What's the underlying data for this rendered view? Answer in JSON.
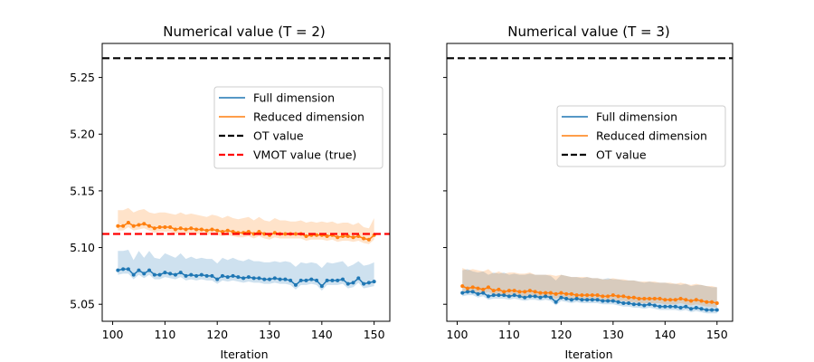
{
  "chart_data": [
    {
      "type": "line",
      "title": "Numerical value (T = 2)",
      "xlabel": "Iteration",
      "ylabel": "",
      "xlim": [
        98,
        153
      ],
      "ylim": [
        5.035,
        5.28
      ],
      "xticks": [
        100,
        110,
        120,
        130,
        140,
        150
      ],
      "yticks": [
        5.05,
        5.1,
        5.15,
        5.2,
        5.25
      ],
      "ytick_labels": [
        "5.05",
        "5.10",
        "5.15",
        "5.20",
        "5.25"
      ],
      "legend_position": "upper-right",
      "series": [
        {
          "name": "Full dimension",
          "color": "#1f77b4",
          "x_start": 101,
          "values": [
            5.08,
            5.081,
            5.081,
            5.076,
            5.08,
            5.077,
            5.08,
            5.076,
            5.076,
            5.078,
            5.077,
            5.076,
            5.078,
            5.075,
            5.076,
            5.075,
            5.076,
            5.075,
            5.075,
            5.072,
            5.075,
            5.074,
            5.075,
            5.074,
            5.073,
            5.074,
            5.073,
            5.073,
            5.072,
            5.072,
            5.073,
            5.072,
            5.072,
            5.071,
            5.067,
            5.071,
            5.071,
            5.072,
            5.071,
            5.066,
            5.071,
            5.071,
            5.071,
            5.072,
            5.068,
            5.069,
            5.073,
            5.068,
            5.069,
            5.07
          ],
          "upper": [
            5.097,
            5.097,
            5.098,
            5.089,
            5.097,
            5.091,
            5.097,
            5.091,
            5.09,
            5.095,
            5.093,
            5.091,
            5.095,
            5.09,
            5.092,
            5.09,
            5.091,
            5.09,
            5.09,
            5.086,
            5.091,
            5.089,
            5.091,
            5.089,
            5.088,
            5.09,
            5.088,
            5.088,
            5.087,
            5.087,
            5.088,
            5.087,
            5.088,
            5.087,
            5.083,
            5.087,
            5.086,
            5.087,
            5.086,
            5.082,
            5.087,
            5.086,
            5.087,
            5.088,
            5.083,
            5.085,
            5.088,
            5.084,
            5.085,
            5.087
          ],
          "lower": [
            5.076,
            5.077,
            5.077,
            5.072,
            5.076,
            5.073,
            5.076,
            5.072,
            5.072,
            5.074,
            5.073,
            5.072,
            5.074,
            5.071,
            5.072,
            5.071,
            5.072,
            5.071,
            5.071,
            5.068,
            5.071,
            5.07,
            5.071,
            5.07,
            5.069,
            5.07,
            5.069,
            5.069,
            5.068,
            5.068,
            5.069,
            5.068,
            5.068,
            5.067,
            5.063,
            5.067,
            5.067,
            5.068,
            5.067,
            5.062,
            5.067,
            5.067,
            5.067,
            5.068,
            5.064,
            5.065,
            5.069,
            5.064,
            5.065,
            5.066
          ]
        },
        {
          "name": "Reduced dimension",
          "color": "#ff7f0e",
          "x_start": 101,
          "values": [
            5.119,
            5.119,
            5.122,
            5.119,
            5.12,
            5.121,
            5.119,
            5.117,
            5.118,
            5.118,
            5.118,
            5.116,
            5.117,
            5.116,
            5.117,
            5.116,
            5.116,
            5.115,
            5.116,
            5.115,
            5.114,
            5.115,
            5.114,
            5.113,
            5.113,
            5.114,
            5.112,
            5.114,
            5.112,
            5.111,
            5.113,
            5.112,
            5.112,
            5.112,
            5.112,
            5.112,
            5.11,
            5.111,
            5.111,
            5.111,
            5.11,
            5.111,
            5.109,
            5.11,
            5.11,
            5.109,
            5.11,
            5.108,
            5.107,
            5.111
          ],
          "upper": [
            5.133,
            5.133,
            5.135,
            5.131,
            5.133,
            5.134,
            5.131,
            5.13,
            5.131,
            5.131,
            5.13,
            5.129,
            5.131,
            5.129,
            5.13,
            5.129,
            5.128,
            5.127,
            5.129,
            5.128,
            5.126,
            5.128,
            5.126,
            5.125,
            5.126,
            5.127,
            5.124,
            5.127,
            5.124,
            5.123,
            5.126,
            5.124,
            5.124,
            5.123,
            5.123,
            5.124,
            5.122,
            5.123,
            5.122,
            5.123,
            5.122,
            5.123,
            5.121,
            5.122,
            5.122,
            5.12,
            5.122,
            5.118,
            5.117,
            5.126
          ],
          "lower": [
            5.115,
            5.115,
            5.118,
            5.115,
            5.116,
            5.117,
            5.115,
            5.113,
            5.114,
            5.114,
            5.114,
            5.112,
            5.113,
            5.112,
            5.113,
            5.112,
            5.112,
            5.111,
            5.112,
            5.111,
            5.11,
            5.111,
            5.11,
            5.109,
            5.109,
            5.11,
            5.108,
            5.11,
            5.108,
            5.107,
            5.109,
            5.108,
            5.108,
            5.108,
            5.108,
            5.108,
            5.106,
            5.107,
            5.107,
            5.107,
            5.106,
            5.107,
            5.105,
            5.106,
            5.106,
            5.105,
            5.106,
            5.104,
            5.103,
            5.107
          ]
        }
      ],
      "hlines": [
        {
          "name": "OT value",
          "value": 5.267,
          "color": "#000000"
        },
        {
          "name": "VMOT value (true)",
          "value": 5.112,
          "color": "#ff0000"
        }
      ]
    },
    {
      "type": "line",
      "title": "Numerical value (T = 3)",
      "xlabel": "Iteration",
      "ylabel": "",
      "xlim": [
        98,
        153
      ],
      "ylim": [
        5.035,
        5.28
      ],
      "xticks": [
        100,
        110,
        120,
        130,
        140,
        150
      ],
      "yticks": [
        5.05,
        5.1,
        5.15,
        5.2,
        5.25
      ],
      "legend_position": "right",
      "series": [
        {
          "name": "Full dimension",
          "color": "#1f77b4",
          "x_start": 101,
          "values": [
            5.06,
            5.061,
            5.061,
            5.059,
            5.06,
            5.057,
            5.058,
            5.058,
            5.058,
            5.057,
            5.058,
            5.057,
            5.056,
            5.057,
            5.057,
            5.056,
            5.057,
            5.056,
            5.052,
            5.056,
            5.055,
            5.054,
            5.055,
            5.054,
            5.054,
            5.054,
            5.054,
            5.053,
            5.053,
            5.053,
            5.052,
            5.051,
            5.051,
            5.05,
            5.05,
            5.049,
            5.05,
            5.049,
            5.048,
            5.048,
            5.048,
            5.048,
            5.047,
            5.048,
            5.046,
            5.047,
            5.046,
            5.045,
            5.045,
            5.045
          ],
          "upper": [
            5.08,
            5.081,
            5.079,
            5.078,
            5.079,
            5.076,
            5.078,
            5.077,
            5.078,
            5.076,
            5.077,
            5.076,
            5.076,
            5.077,
            5.076,
            5.076,
            5.076,
            5.075,
            5.071,
            5.076,
            5.075,
            5.074,
            5.074,
            5.073,
            5.074,
            5.073,
            5.073,
            5.072,
            5.073,
            5.072,
            5.072,
            5.071,
            5.071,
            5.071,
            5.07,
            5.069,
            5.07,
            5.069,
            5.069,
            5.069,
            5.068,
            5.068,
            5.067,
            5.068,
            5.066,
            5.067,
            5.067,
            5.066,
            5.065,
            5.065
          ],
          "lower": [
            5.057,
            5.058,
            5.058,
            5.056,
            5.057,
            5.054,
            5.055,
            5.055,
            5.055,
            5.054,
            5.055,
            5.054,
            5.053,
            5.054,
            5.054,
            5.053,
            5.054,
            5.053,
            5.049,
            5.053,
            5.052,
            5.051,
            5.052,
            5.051,
            5.051,
            5.051,
            5.051,
            5.05,
            5.05,
            5.05,
            5.049,
            5.048,
            5.048,
            5.047,
            5.047,
            5.046,
            5.047,
            5.046,
            5.045,
            5.045,
            5.045,
            5.045,
            5.044,
            5.045,
            5.043,
            5.044,
            5.043,
            5.042,
            5.042,
            5.042
          ]
        },
        {
          "name": "Reduced dimension",
          "color": "#ff7f0e",
          "x_start": 101,
          "values": [
            5.066,
            5.064,
            5.065,
            5.064,
            5.063,
            5.065,
            5.062,
            5.063,
            5.061,
            5.062,
            5.062,
            5.061,
            5.061,
            5.062,
            5.061,
            5.06,
            5.06,
            5.06,
            5.059,
            5.06,
            5.059,
            5.059,
            5.058,
            5.058,
            5.058,
            5.058,
            5.058,
            5.057,
            5.057,
            5.058,
            5.057,
            5.057,
            5.056,
            5.056,
            5.055,
            5.055,
            5.055,
            5.055,
            5.055,
            5.054,
            5.054,
            5.054,
            5.055,
            5.054,
            5.053,
            5.054,
            5.053,
            5.052,
            5.052,
            5.051
          ],
          "upper": [
            5.082,
            5.08,
            5.081,
            5.08,
            5.079,
            5.081,
            5.077,
            5.079,
            5.077,
            5.078,
            5.078,
            5.077,
            5.077,
            5.078,
            5.076,
            5.076,
            5.076,
            5.076,
            5.075,
            5.076,
            5.075,
            5.074,
            5.074,
            5.074,
            5.074,
            5.073,
            5.073,
            5.072,
            5.072,
            5.073,
            5.072,
            5.072,
            5.071,
            5.071,
            5.07,
            5.07,
            5.07,
            5.07,
            5.069,
            5.069,
            5.069,
            5.068,
            5.069,
            5.068,
            5.067,
            5.068,
            5.067,
            5.066,
            5.066,
            5.065
          ],
          "lower": [
            5.062,
            5.06,
            5.061,
            5.06,
            5.059,
            5.061,
            5.058,
            5.059,
            5.057,
            5.058,
            5.058,
            5.057,
            5.057,
            5.058,
            5.057,
            5.056,
            5.056,
            5.056,
            5.055,
            5.056,
            5.055,
            5.055,
            5.054,
            5.054,
            5.054,
            5.054,
            5.054,
            5.053,
            5.053,
            5.054,
            5.053,
            5.053,
            5.052,
            5.052,
            5.051,
            5.051,
            5.051,
            5.051,
            5.051,
            5.05,
            5.05,
            5.05,
            5.051,
            5.05,
            5.049,
            5.05,
            5.049,
            5.048,
            5.048,
            5.047
          ]
        }
      ],
      "hlines": [
        {
          "name": "OT value",
          "value": 5.267,
          "color": "#000000"
        }
      ]
    }
  ]
}
